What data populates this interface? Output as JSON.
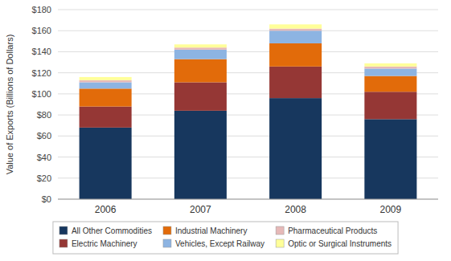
{
  "chart_data": {
    "type": "bar",
    "stacked": true,
    "categories": [
      "2006",
      "2007",
      "2008",
      "2009"
    ],
    "series": [
      {
        "name": "All Other Commodities",
        "color": "#17375E",
        "values": [
          68,
          84,
          96,
          76
        ]
      },
      {
        "name": "Electric Machinery",
        "color": "#953735",
        "values": [
          20,
          27,
          30,
          26
        ]
      },
      {
        "name": "Industrial Machinery",
        "color": "#E26B0A",
        "values": [
          17,
          22,
          22,
          15
        ]
      },
      {
        "name": "Vehicles, Except Railway",
        "color": "#8DB4E2",
        "values": [
          6,
          9,
          12,
          7
        ]
      },
      {
        "name": "Pharmaceutical Products",
        "color": "#E6B9B8",
        "values": [
          2,
          2,
          2,
          2
        ]
      },
      {
        "name": "Optic or Surgical Instruments",
        "color": "#FFFF99",
        "values": [
          3,
          3,
          4,
          3
        ]
      }
    ],
    "ylabel": "Value of Exports (Billions of Dollars)",
    "ylim": [
      0,
      180
    ],
    "yticks": [
      {
        "value": 0,
        "label": "$0"
      },
      {
        "value": 20,
        "label": "$20"
      },
      {
        "value": 40,
        "label": "$40"
      },
      {
        "value": 60,
        "label": "$60"
      },
      {
        "value": 80,
        "label": "$80"
      },
      {
        "value": 100,
        "label": "$100"
      },
      {
        "value": 120,
        "label": "$120"
      },
      {
        "value": 140,
        "label": "$140"
      },
      {
        "value": 160,
        "label": "$160"
      },
      {
        "value": 180,
        "label": "$180"
      }
    ],
    "grid": true,
    "legend": "bottom"
  }
}
